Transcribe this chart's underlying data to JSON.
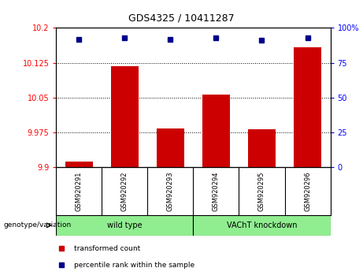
{
  "title": "GDS4325 / 10411287",
  "samples": [
    "GSM920291",
    "GSM920292",
    "GSM920293",
    "GSM920294",
    "GSM920295",
    "GSM920296"
  ],
  "red_values": [
    9.912,
    10.118,
    9.984,
    10.057,
    9.982,
    10.158
  ],
  "blue_values": [
    92,
    93,
    92,
    93,
    91,
    93
  ],
  "ylim_left": [
    9.9,
    10.2
  ],
  "ylim_right": [
    0,
    100
  ],
  "yticks_left": [
    9.9,
    9.975,
    10.05,
    10.125,
    10.2
  ],
  "ytick_labels_left": [
    "9.9",
    "9.975",
    "10.05",
    "10.125",
    "10.2"
  ],
  "yticks_right": [
    0,
    25,
    50,
    75,
    100
  ],
  "ytick_labels_right": [
    "0",
    "25",
    "50",
    "75",
    "100%"
  ],
  "bar_color": "#CC0000",
  "dot_color": "#00008B",
  "bar_width": 0.6,
  "plot_bg": "#FFFFFF",
  "sample_box_bg": "#C8C8C8",
  "group_bg": "#90EE90",
  "title_fontsize": 9,
  "tick_fontsize": 7,
  "label_fontsize": 6.5,
  "legend_fontsize": 6.5,
  "group_label_text": "genotype/variation",
  "wt_label": "wild type",
  "vacht_label": "VAChT knockdown",
  "legend_red_label": "transformed count",
  "legend_blue_label": "percentile rank within the sample"
}
